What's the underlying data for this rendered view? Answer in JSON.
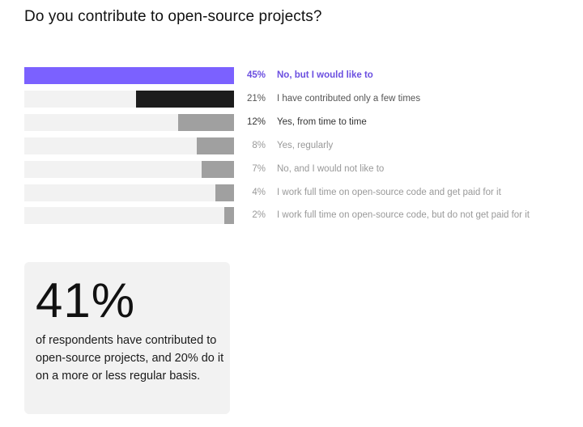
{
  "title": "Do you contribute to open-source projects?",
  "chart_data": {
    "type": "bar",
    "orientation": "horizontal",
    "title": "Do you contribute to open-source projects?",
    "categories": [
      "No, but I would like to",
      "I have contributed only a few times",
      "Yes, from time to time",
      "Yes, regularly",
      "No, and I would not like to",
      "I work full time on open-source code and get paid for it",
      "I work full time on open-source code, but do not get paid for it"
    ],
    "values": [
      45,
      21,
      12,
      8,
      7,
      4,
      2
    ],
    "value_labels": [
      "45%",
      "21%",
      "12%",
      "8%",
      "7%",
      "4%",
      "2%"
    ],
    "unit": "%",
    "xlim": [
      0,
      45
    ],
    "colors": [
      "#7b61ff",
      "#1c1c1c",
      "#a0a0a0",
      "#a0a0a0",
      "#a0a0a0",
      "#a0a0a0",
      "#a0a0a0"
    ],
    "text_colors": [
      "#6b4fe0",
      "#555555",
      "#333333",
      "#999999",
      "#999999",
      "#999999",
      "#999999"
    ],
    "track_color": "#f2f2f2"
  },
  "summary": {
    "big_number": "41%",
    "description": "of respondents have contributed to open-source projects, and 20% do it on a more or less regular basis."
  }
}
